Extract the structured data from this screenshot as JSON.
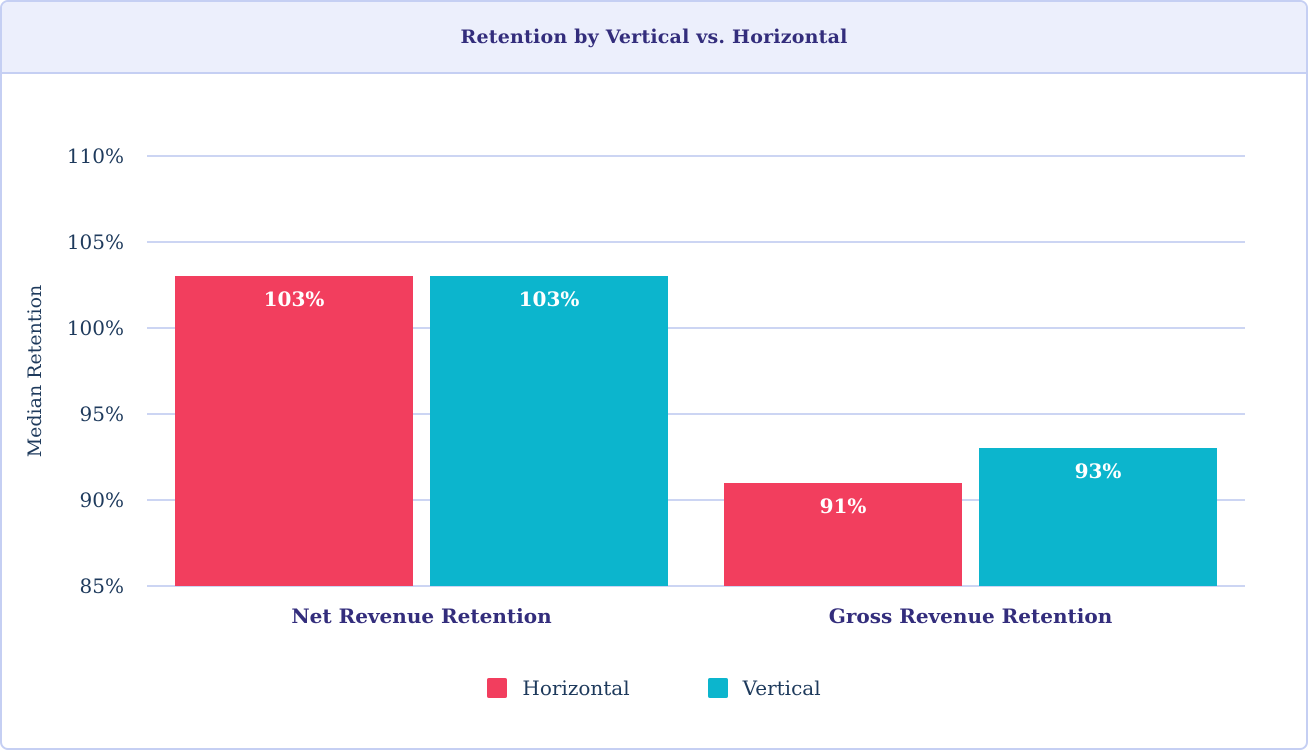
{
  "header": {
    "title": "Retention by Vertical vs. Horizontal"
  },
  "chart_data": {
    "type": "bar",
    "title": "Retention by Vertical vs. Horizontal",
    "categories": [
      "Net Revenue Retention",
      "Gross Revenue Retention"
    ],
    "series": [
      {
        "name": "Horizontal",
        "color": "#f23e5e",
        "values": [
          103,
          91
        ]
      },
      {
        "name": "Vertical",
        "color": "#0cb5cd",
        "values": [
          103,
          93
        ]
      }
    ],
    "value_suffix": "%",
    "bar_value_labels": [
      [
        "103%",
        "91%"
      ],
      [
        "103%",
        "93%"
      ]
    ],
    "xlabel": "",
    "ylabel": "Median Retention",
    "ylim": [
      85,
      110
    ],
    "yticks": [
      110,
      105,
      100,
      95,
      90,
      85
    ],
    "ytick_labels": [
      "110%",
      "105%",
      "100%",
      "95%",
      "90%",
      "85%"
    ],
    "grid": true,
    "legend_position": "bottom",
    "colors": {
      "title_text": "#332d7c",
      "axis_text": "#1e3a5c",
      "gridline": "#ccd5f3",
      "header_background": "#eceffc",
      "border": "#c5cff3",
      "bar_label_text": "#ffffff"
    }
  }
}
